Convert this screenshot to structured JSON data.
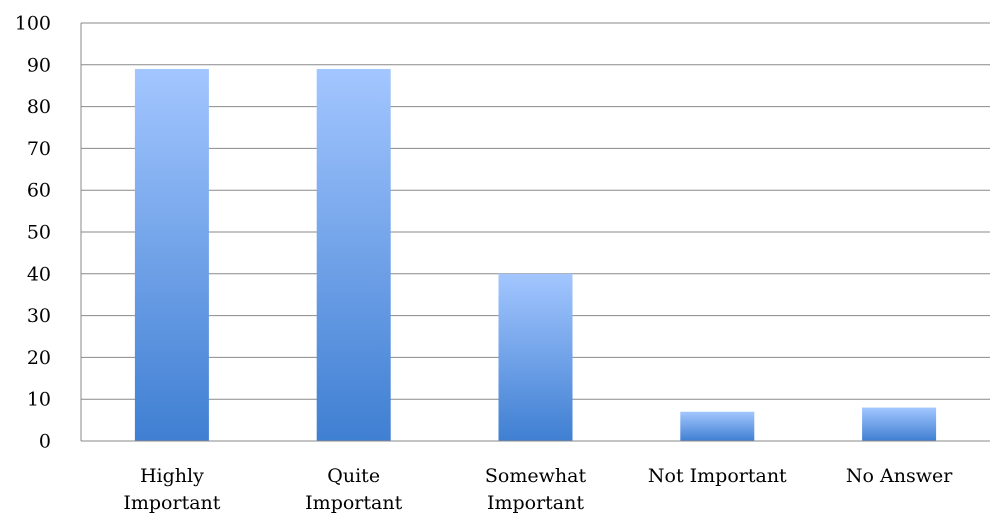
{
  "chart_data": {
    "type": "bar",
    "categories": [
      [
        "Highly",
        "Important"
      ],
      [
        "Quite",
        "Important"
      ],
      [
        "Somewhat",
        "Important"
      ],
      [
        "Not Important"
      ],
      [
        "No Answer"
      ]
    ],
    "values": [
      89,
      89,
      40,
      7,
      8
    ],
    "title": "",
    "xlabel": "",
    "ylabel": "",
    "ylim": [
      0,
      100
    ],
    "yticks": [
      "0",
      "10",
      "20",
      "30",
      "40",
      "50",
      "60",
      "70",
      "80",
      "90",
      "100"
    ],
    "grid": true,
    "legend": "none",
    "colors": {
      "bar_top": "#a3c6ff",
      "bar_bottom": "#3f7fd2",
      "grid": "#898989",
      "axis": "#898989",
      "text": "#000000"
    }
  }
}
